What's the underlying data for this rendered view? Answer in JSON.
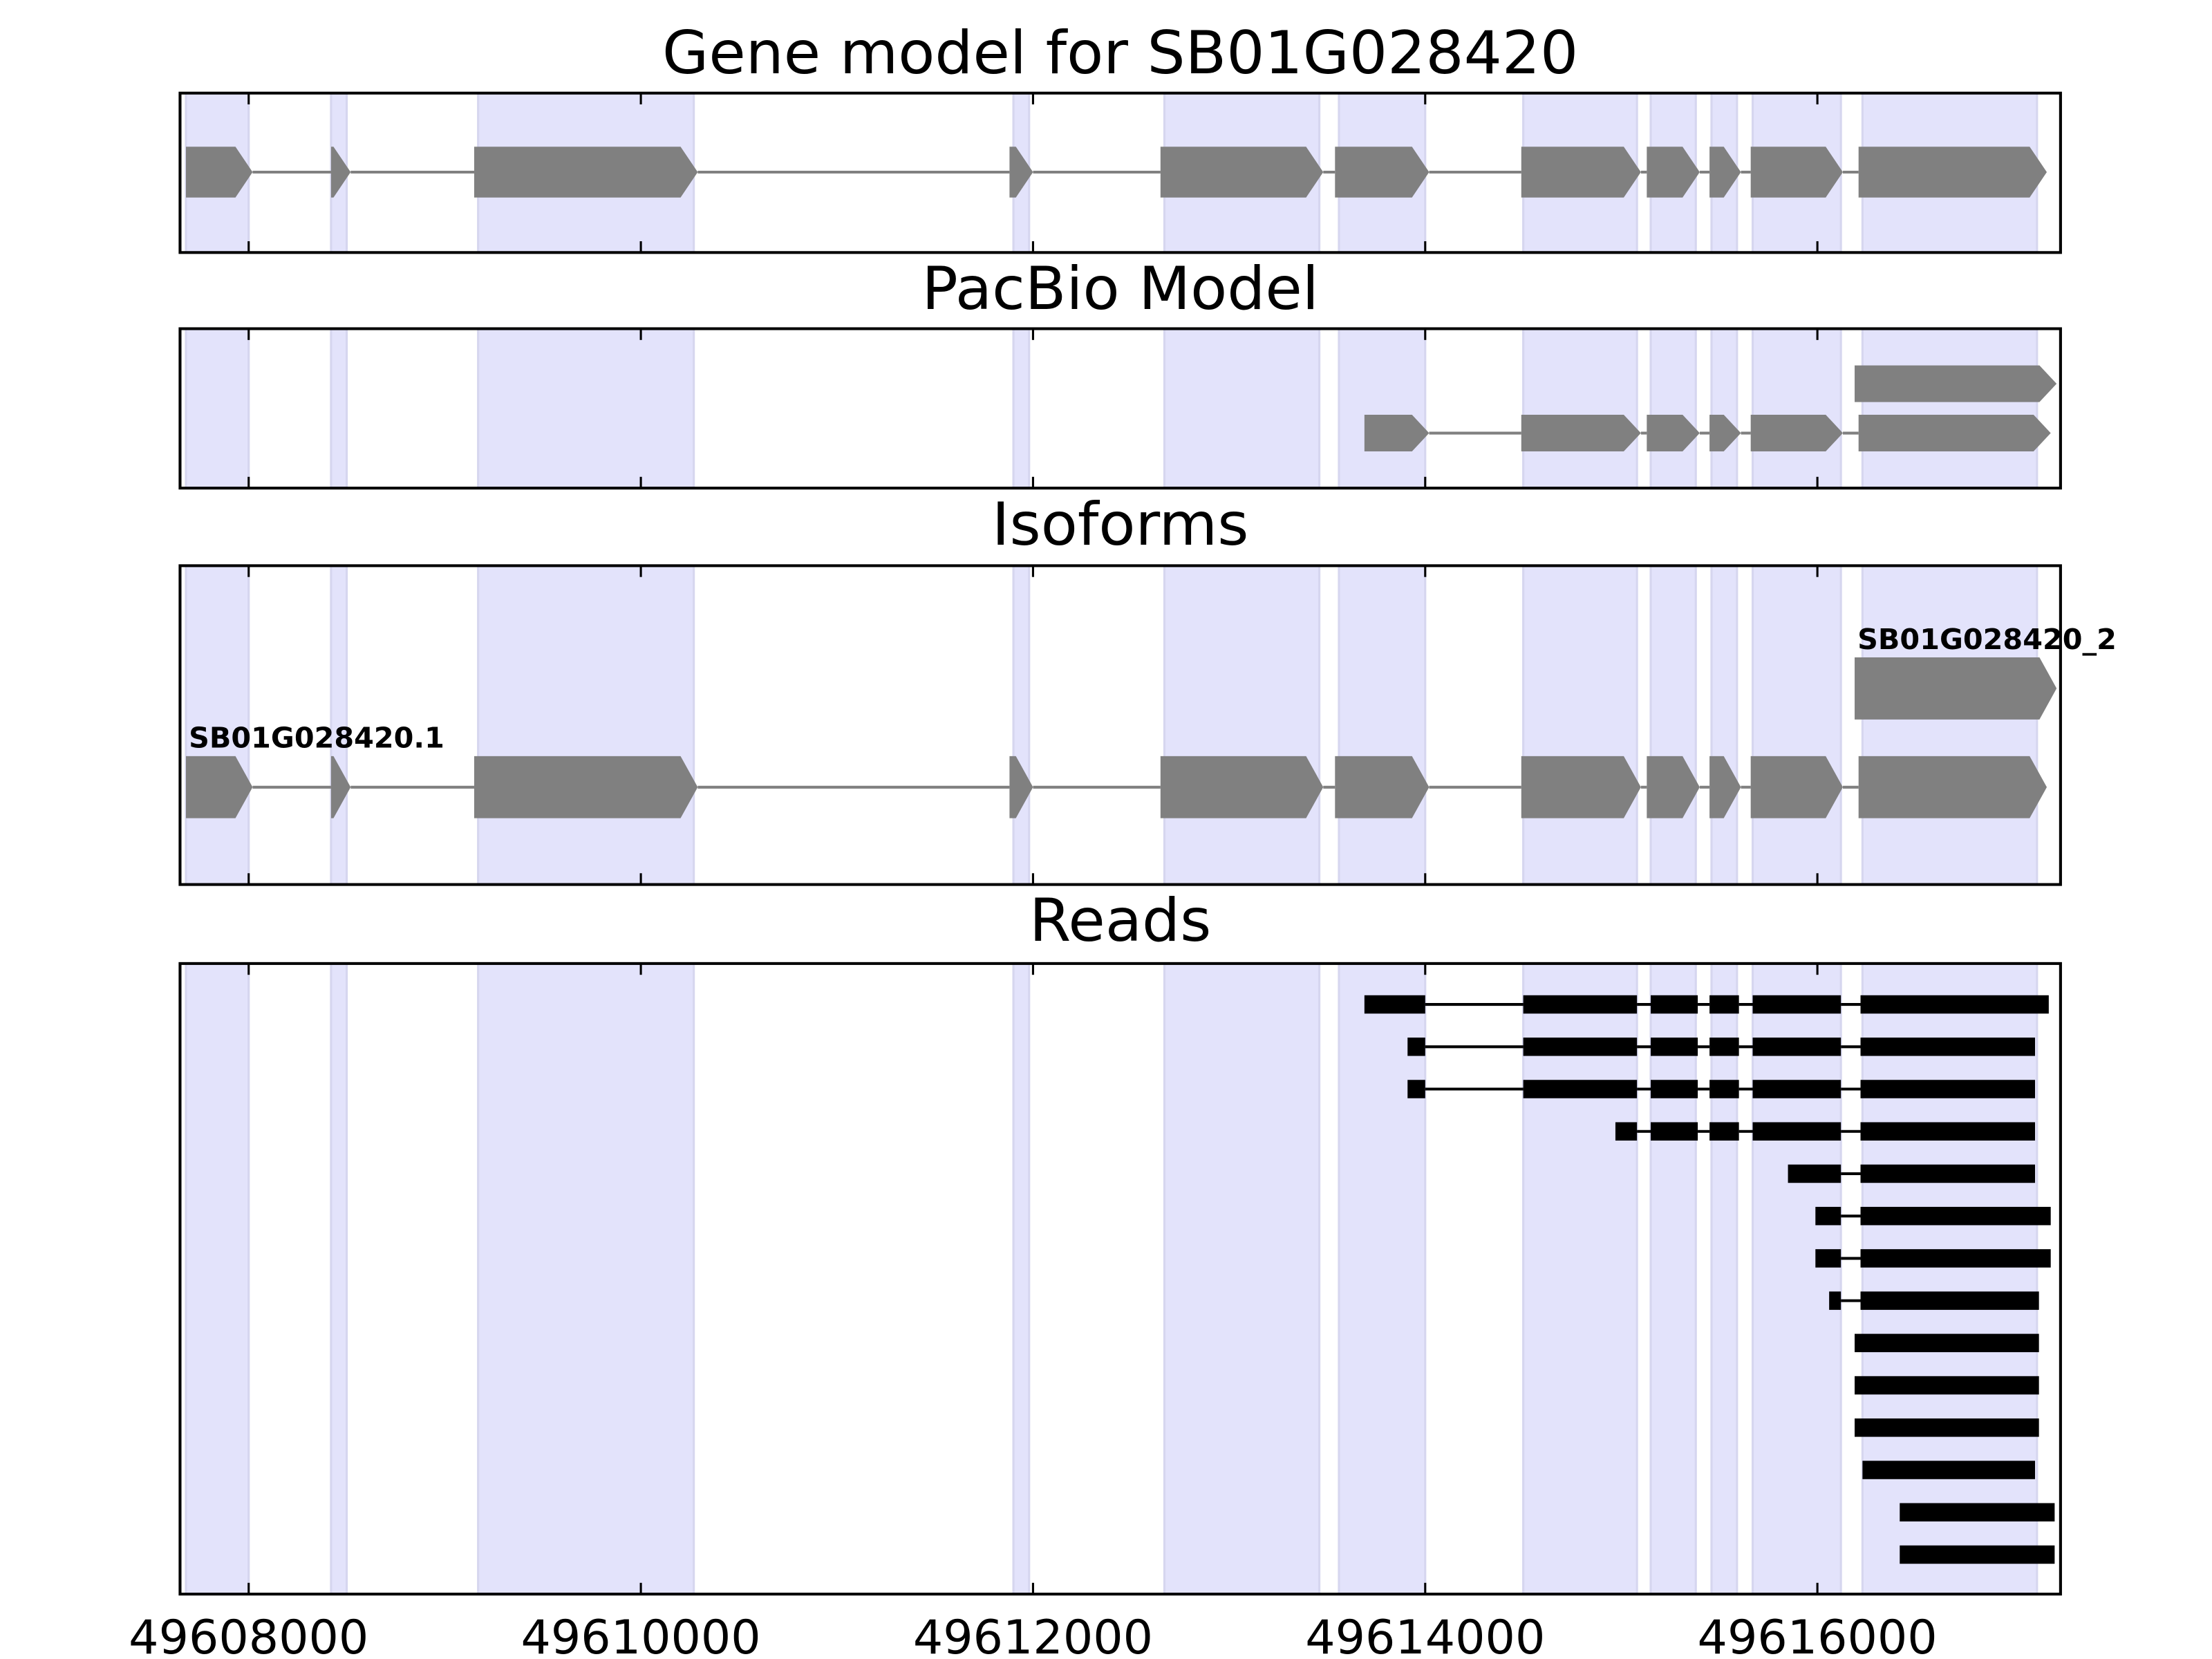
{
  "highlight_regions": [
    [
      49607680,
      49608000
    ],
    [
      49608420,
      49608500
    ],
    [
      49609170,
      49610270
    ],
    [
      49611900,
      49611980
    ],
    [
      49612670,
      49613460
    ],
    [
      49613560,
      49614000
    ],
    [
      49614500,
      49615080
    ],
    [
      49615150,
      49615380
    ],
    [
      49615460,
      49615590
    ],
    [
      49615670,
      49616120
    ],
    [
      49616230,
      49617120
    ]
  ],
  "chart_data": [
    {
      "type": "track",
      "title": "Gene model for SB01G028420",
      "xlim": [
        49607650,
        49617240
      ],
      "xticks": [
        49608000,
        49610000,
        49612000,
        49614000,
        49616000
      ],
      "color": "#808080",
      "arrows": true,
      "tracks": [
        {
          "exons": [
            [
              49607680,
              49608020
            ],
            [
              49608420,
              49608520
            ],
            [
              49609150,
              49610290
            ],
            [
              49611880,
              49612000
            ],
            [
              49612650,
              49613480
            ],
            [
              49613540,
              49614020
            ],
            [
              49614490,
              49615100
            ],
            [
              49615130,
              49615400
            ],
            [
              49615450,
              49615610
            ],
            [
              49615660,
              49616130
            ],
            [
              49616210,
              49617170
            ]
          ]
        }
      ]
    },
    {
      "type": "track",
      "title": "PacBio Model",
      "xlim": [
        49607650,
        49617240
      ],
      "xticks": [
        49608000,
        49610000,
        49612000,
        49614000,
        49616000
      ],
      "color": "#808080",
      "arrows": true,
      "tracks": [
        {
          "exons": [
            [
              49616190,
              49617220
            ]
          ]
        },
        {
          "exons": [
            [
              49613690,
              49614020
            ],
            [
              49614490,
              49615100
            ],
            [
              49615130,
              49615400
            ],
            [
              49615450,
              49615610
            ],
            [
              49615660,
              49616130
            ],
            [
              49616210,
              49617190
            ]
          ]
        }
      ]
    },
    {
      "type": "track",
      "title": "Isoforms",
      "xlim": [
        49607650,
        49617240
      ],
      "xticks": [
        49608000,
        49610000,
        49612000,
        49614000,
        49616000
      ],
      "color": "#808080",
      "arrows": true,
      "tracks": [
        {
          "label": "SB01G028420_2",
          "exons": [
            [
              49616190,
              49617220
            ]
          ]
        },
        {
          "label": "SB01G028420.1",
          "exons": [
            [
              49607680,
              49608020
            ],
            [
              49608420,
              49608520
            ],
            [
              49609150,
              49610290
            ],
            [
              49611880,
              49612000
            ],
            [
              49612650,
              49613480
            ],
            [
              49613540,
              49614020
            ],
            [
              49614490,
              49615100
            ],
            [
              49615130,
              49615400
            ],
            [
              49615450,
              49615610
            ],
            [
              49615660,
              49616130
            ],
            [
              49616210,
              49617170
            ]
          ]
        }
      ]
    },
    {
      "type": "track",
      "title": "Reads",
      "xlim": [
        49607650,
        49617240
      ],
      "xticks": [
        49608000,
        49610000,
        49612000,
        49614000,
        49616000
      ],
      "color": "#000000",
      "arrows": false,
      "tracks": [
        {
          "exons": [
            [
              49613690,
              49614000
            ],
            [
              49614500,
              49615080
            ],
            [
              49615150,
              49615390
            ],
            [
              49615450,
              49615600
            ],
            [
              49615670,
              49616120
            ],
            [
              49616220,
              49617180
            ]
          ]
        },
        {
          "exons": [
            [
              49613910,
              49614000
            ],
            [
              49614500,
              49615080
            ],
            [
              49615150,
              49615390
            ],
            [
              49615450,
              49615600
            ],
            [
              49615670,
              49616120
            ],
            [
              49616220,
              49617110
            ]
          ]
        },
        {
          "exons": [
            [
              49613910,
              49614000
            ],
            [
              49614500,
              49615080
            ],
            [
              49615150,
              49615390
            ],
            [
              49615450,
              49615600
            ],
            [
              49615670,
              49616120
            ],
            [
              49616220,
              49617110
            ]
          ]
        },
        {
          "exons": [
            [
              49614970,
              49615080
            ],
            [
              49615150,
              49615390
            ],
            [
              49615450,
              49615600
            ],
            [
              49615670,
              49616120
            ],
            [
              49616220,
              49617110
            ]
          ]
        },
        {
          "exons": [
            [
              49615850,
              49616120
            ],
            [
              49616220,
              49617110
            ]
          ]
        },
        {
          "exons": [
            [
              49615990,
              49616120
            ],
            [
              49616220,
              49617190
            ]
          ]
        },
        {
          "exons": [
            [
              49615990,
              49616120
            ],
            [
              49616220,
              49617190
            ]
          ]
        },
        {
          "exons": [
            [
              49616060,
              49616120
            ],
            [
              49616220,
              49617130
            ]
          ]
        },
        {
          "exons": [
            [
              49616190,
              49617130
            ]
          ]
        },
        {
          "exons": [
            [
              49616190,
              49617130
            ]
          ]
        },
        {
          "exons": [
            [
              49616190,
              49617130
            ]
          ]
        },
        {
          "exons": [
            [
              49616230,
              49617110
            ]
          ]
        },
        {
          "exons": [
            [
              49616420,
              49617210
            ]
          ]
        },
        {
          "exons": [
            [
              49616420,
              49617210
            ]
          ]
        }
      ]
    }
  ]
}
